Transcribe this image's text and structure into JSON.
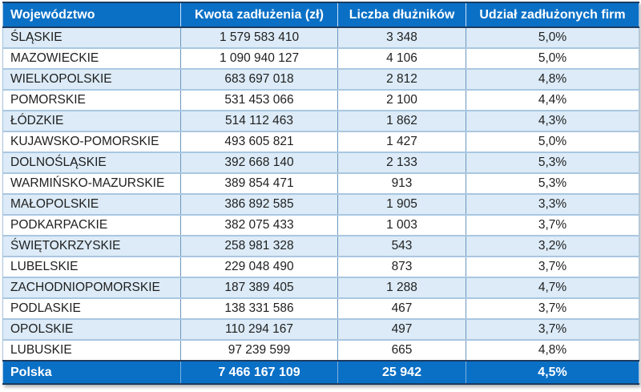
{
  "table": {
    "columns": [
      {
        "label": "Województwo"
      },
      {
        "label": "Kwota zadłużenia (zł)"
      },
      {
        "label": "Liczba dłużników"
      },
      {
        "label": "Udział zadłużonych firm"
      }
    ],
    "rows": [
      {
        "region": "ŚLĄSKIE",
        "debt": "1 579 583 410",
        "debtors": "3 348",
        "share": "5,0%"
      },
      {
        "region": "MAZOWIECKIE",
        "debt": "1 090 940 127",
        "debtors": "4 106",
        "share": "5,0%"
      },
      {
        "region": "WIELKOPOLSKIE",
        "debt": "683 697 018",
        "debtors": "2 812",
        "share": "4,8%"
      },
      {
        "region": "POMORSKIE",
        "debt": "531 453 066",
        "debtors": "2 100",
        "share": "4,4%"
      },
      {
        "region": "ŁÓDZKIE",
        "debt": "514 112 463",
        "debtors": "1 862",
        "share": "4,3%"
      },
      {
        "region": "KUJAWSKO-POMORSKIE",
        "debt": "493 605 821",
        "debtors": "1 427",
        "share": "5,0%"
      },
      {
        "region": "DOLNOŚLĄSKIE",
        "debt": "392 668 140",
        "debtors": "2 133",
        "share": "5,3%"
      },
      {
        "region": "WARMIŃSKO-MAZURSKIE",
        "debt": "389 854 471",
        "debtors": "913",
        "share": "5,3%"
      },
      {
        "region": "MAŁOPOLSKIE",
        "debt": "386 892 585",
        "debtors": "1 905",
        "share": "3,3%"
      },
      {
        "region": "PODKARPACKIE",
        "debt": "382 075 433",
        "debtors": "1 003",
        "share": "3,7%"
      },
      {
        "region": "ŚWIĘTOKRZYSKIE",
        "debt": "258 981 328",
        "debtors": "543",
        "share": "3,2%"
      },
      {
        "region": "LUBELSKIE",
        "debt": "229 048 490",
        "debtors": "873",
        "share": "3,7%"
      },
      {
        "region": "ZACHODNIOPOMORSKIE",
        "debt": "187 389 405",
        "debtors": "1 288",
        "share": "4,7%"
      },
      {
        "region": "PODLASKIE",
        "debt": "138 331 586",
        "debtors": "467",
        "share": "3,7%"
      },
      {
        "region": "OPOLSKIE",
        "debt": "110 294 167",
        "debtors": "497",
        "share": "3,7%"
      },
      {
        "region": "LUBUSKIE",
        "debt": "97 239 599",
        "debtors": "665",
        "share": "4,8%"
      }
    ],
    "total": {
      "region": "Polska",
      "debt": "7 466 167 109",
      "debtors": "25 942",
      "share": "4,5%"
    }
  },
  "chart_data": {
    "type": "table",
    "title": "",
    "columns": [
      "Województwo",
      "Kwota zadłużenia (zł)",
      "Liczba dłużników",
      "Udział zadłużonych firm"
    ],
    "rows": [
      [
        "ŚLĄSKIE",
        1579583410,
        3348,
        "5,0%"
      ],
      [
        "MAZOWIECKIE",
        1090940127,
        4106,
        "5,0%"
      ],
      [
        "WIELKOPOLSKIE",
        683697018,
        2812,
        "4,8%"
      ],
      [
        "POMORSKIE",
        531453066,
        2100,
        "4,4%"
      ],
      [
        "ŁÓDZKIE",
        514112463,
        1862,
        "4,3%"
      ],
      [
        "KUJAWSKO-POMORSKIE",
        493605821,
        1427,
        "5,0%"
      ],
      [
        "DOLNOŚLĄSKIE",
        392668140,
        2133,
        "5,3%"
      ],
      [
        "WARMIŃSKO-MAZURSKIE",
        389854471,
        913,
        "5,3%"
      ],
      [
        "MAŁOPOLSKIE",
        386892585,
        1905,
        "3,3%"
      ],
      [
        "PODKARPACKIE",
        382075433,
        1003,
        "3,7%"
      ],
      [
        "ŚWIĘTOKRZYSKIE",
        258981328,
        543,
        "3,2%"
      ],
      [
        "LUBELSKIE",
        229048490,
        873,
        "3,7%"
      ],
      [
        "ZACHODNIOPOMORSKIE",
        187389405,
        1288,
        "4,7%"
      ],
      [
        "PODLASKIE",
        138331586,
        467,
        "3,7%"
      ],
      [
        "OPOLSKIE",
        110294167,
        497,
        "3,7%"
      ],
      [
        "LUBUSKIE",
        97239599,
        665,
        "4,8%"
      ],
      [
        "Polska",
        7466167109,
        25942,
        "4,5%"
      ]
    ]
  },
  "colors": {
    "header_bg": "#0a70c6",
    "stripe_bg": "#dcebf7",
    "row_bg": "#ffffff",
    "border_dark": "#1b3a5f",
    "border_light": "#a9c7e1",
    "border_vertical": "#6b96bd",
    "header_text": "#ffffff",
    "body_text": "#1f1f1f"
  }
}
